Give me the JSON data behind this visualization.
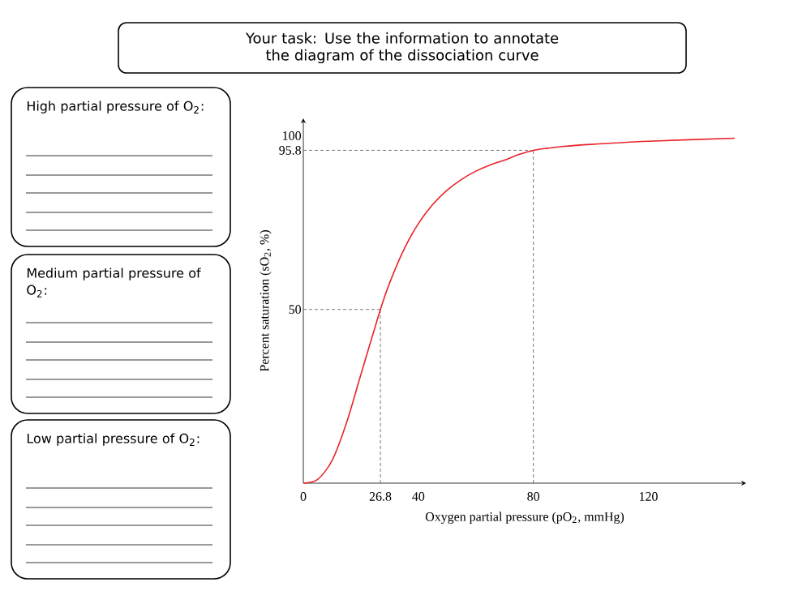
{
  "chart_data": {
    "type": "line",
    "title": "Your task: Use the information to annotate the diagram of the dissociation curve",
    "xlabel": "Oxygen partial pressure (pO$_{2}$, mmHg)",
    "ylabel": "Percent saturation (sO$_{2}$, %)",
    "x": [
      0,
      5,
      10,
      15,
      20,
      26.8,
      30,
      35,
      40,
      45,
      50,
      55,
      60,
      65,
      70,
      75,
      80,
      85,
      90,
      100,
      120,
      150
    ],
    "series": [
      {
        "color": "#e8232a",
        "values": [
          0,
          1.1,
          6.5,
          17.3,
          31.2,
          50,
          57.6,
          67.3,
          74.7,
          80.2,
          84.3,
          87.4,
          89.8,
          91.6,
          93.0,
          94.6,
          95.8,
          96.4,
          96.9,
          97.5,
          98.4,
          99.3
        ]
      }
    ],
    "xlim": [
      0,
      154
    ],
    "ylim": [
      0,
      105
    ],
    "xticks": [
      0,
      26.8,
      40,
      80,
      120
    ],
    "yticks": [
      50,
      95.8,
      100
    ],
    "ref_lines": [
      {
        "axis": "x",
        "value": 26.8,
        "line_style": "dashed",
        "color": "#555555"
      },
      {
        "axis": "y",
        "value": 50,
        "line_style": "dashed",
        "color": "#555555"
      },
      {
        "axis": "x",
        "value": 80,
        "line_style": "dashed",
        "color": "#555555"
      },
      {
        "axis": "y",
        "value": 95.8,
        "line_style": "dashed",
        "color": "#555555"
      }
    ],
    "annotations": [
      "High partial pressure of O$_{2}$:",
      "Medium partial pressure of O$_{2}$:",
      "Low partial pressure of O$_{2}$:"
    ]
  }
}
